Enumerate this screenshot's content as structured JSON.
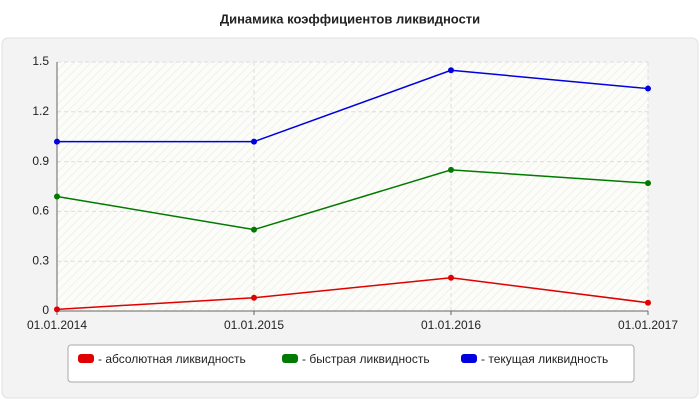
{
  "chart_data": {
    "type": "line",
    "title": "Динамика коэффициентов ликвидности",
    "categories": [
      "01.01.2014",
      "01.01.2015",
      "01.01.2016",
      "01.01.2017"
    ],
    "series": [
      {
        "name": "- абсолютная ликвидность",
        "color": "#e00000",
        "values": [
          0.01,
          0.08,
          0.2,
          0.05
        ]
      },
      {
        "name": "- быстрая ликвидность",
        "color": "#007a00",
        "values": [
          0.69,
          0.49,
          0.85,
          0.77
        ]
      },
      {
        "name": "- текущая ликвидность",
        "color": "#0000e0",
        "values": [
          1.02,
          1.02,
          1.45,
          1.34
        ]
      }
    ],
    "ylim": [
      0,
      1.5
    ],
    "yticks": [
      0,
      0.3,
      0.6,
      0.9,
      1.2,
      1.5
    ],
    "grid": true
  }
}
